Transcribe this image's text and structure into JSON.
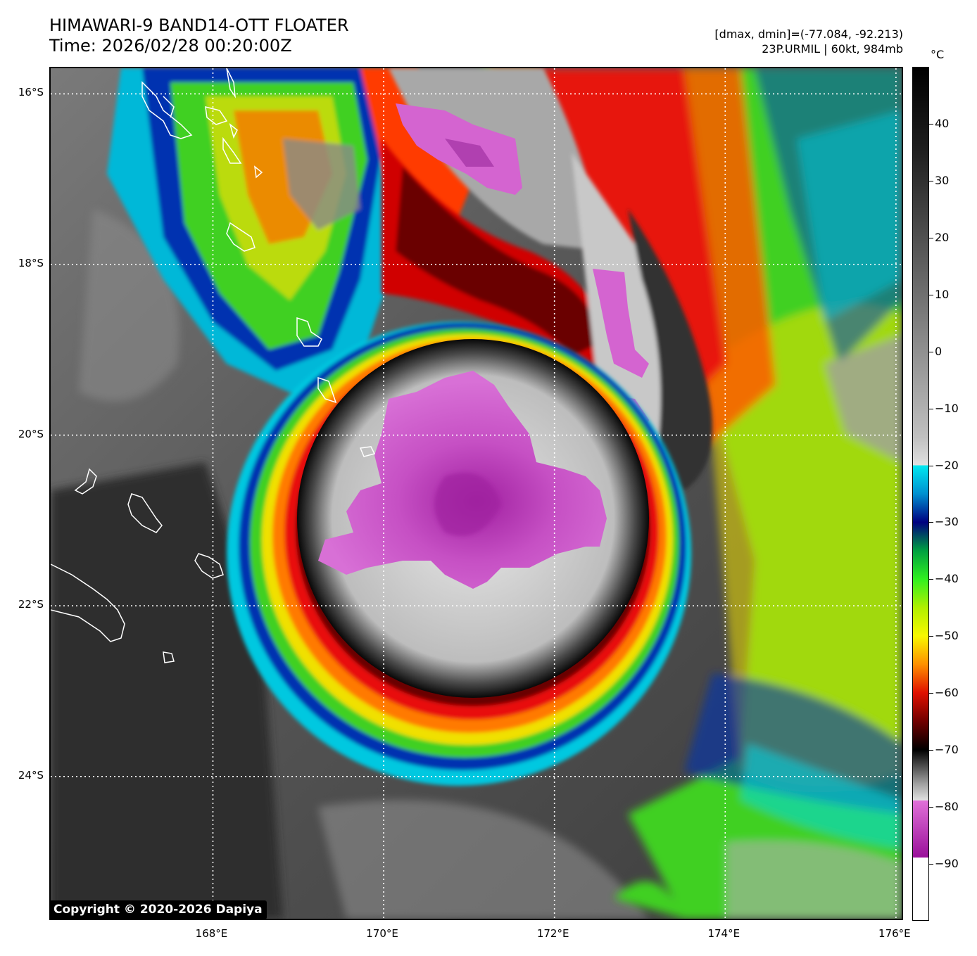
{
  "title": {
    "line1": "HIMAWARI-9 BAND14-OTT FLOATER",
    "line2": "Time: 2026/02/28 00:20:00Z"
  },
  "meta": {
    "dminmax": "[dmax, dmin]=(-77.084, -92.213)",
    "storm": "23P.URMIL | 60kt, 984mb"
  },
  "map": {
    "lat_labels": [
      "16°S",
      "18°S",
      "20°S",
      "22°S",
      "24°S"
    ],
    "lon_labels": [
      "168°E",
      "170°E",
      "172°E",
      "174°E",
      "176°E"
    ],
    "lat_values": [
      -16,
      -18,
      -20,
      -22,
      -24
    ],
    "lon_values": [
      168,
      170,
      172,
      174,
      176
    ],
    "extent": {
      "lon_min": 166.1,
      "lon_max": 176.1,
      "lat_min": -25.7,
      "lat_max": -15.7
    },
    "storm_center": {
      "lon": 171.1,
      "lat": -20.7
    }
  },
  "colorbar": {
    "unit": "°C",
    "labels": [
      "40",
      "30",
      "20",
      "10",
      "0",
      "−10",
      "−20",
      "−30",
      "−40",
      "−50",
      "−60",
      "−70",
      "−80",
      "−90"
    ],
    "values": [
      40,
      30,
      20,
      10,
      0,
      -10,
      -20,
      -30,
      -40,
      -50,
      -60,
      -70,
      -80,
      -90
    ],
    "range": [
      -100,
      50
    ]
  },
  "copyright": "Copyright © 2020-2026 Dapiya",
  "colors": {
    "purple": "#d464d0",
    "deep_purple": "#a020a0",
    "red": "#e81010",
    "dark_red": "#7a0000",
    "orange": "#ff7a00",
    "yellow": "#f0f000",
    "green": "#40e020",
    "blue": "#0030c0",
    "cyan": "#00e0f0",
    "coastline": "#ffffff"
  }
}
